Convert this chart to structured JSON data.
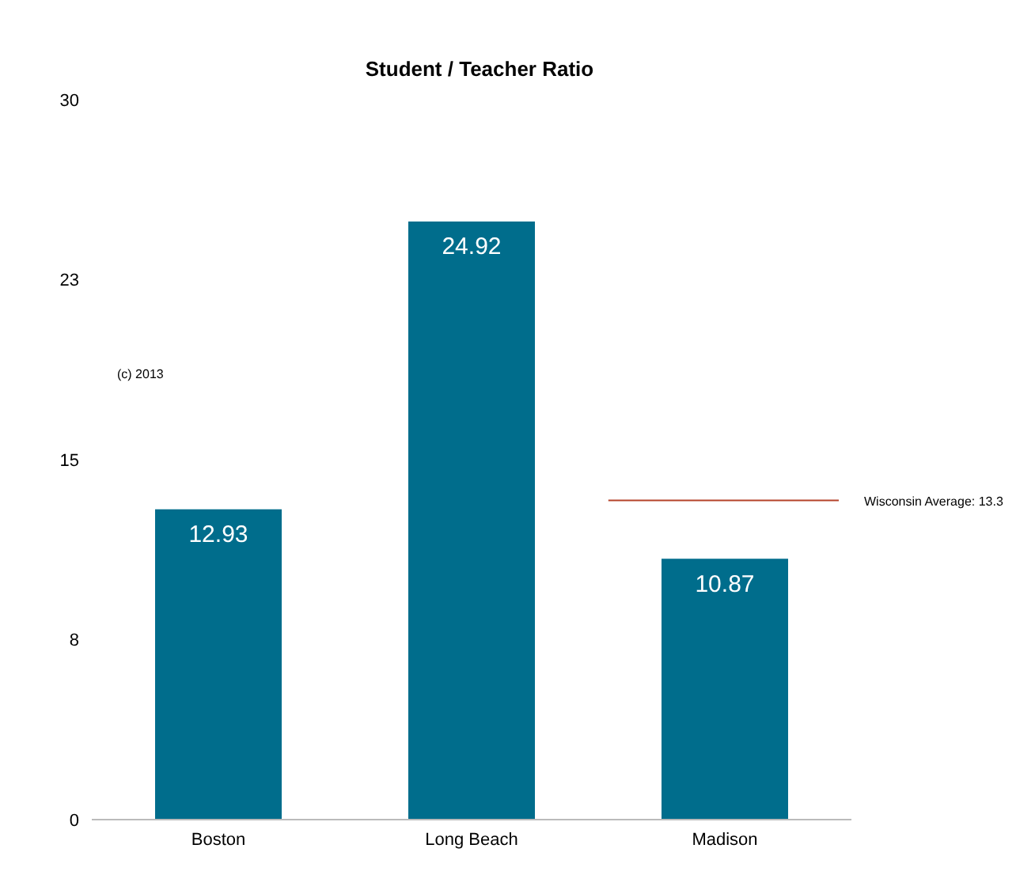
{
  "chart_data": {
    "type": "bar",
    "title": "Student / Teacher Ratio",
    "categories": [
      "Boston",
      "Long Beach",
      "Madison"
    ],
    "values": [
      12.93,
      24.92,
      10.87
    ],
    "color": "#006d8c",
    "ylim": [
      0,
      30
    ],
    "yticks": [
      0,
      {
        "value": 7.5,
        "label": "8"
      },
      15,
      {
        "value": 22.5,
        "label": "23"
      },
      30
    ],
    "data_labels": true,
    "ref_lines": [
      {
        "axis": "y",
        "value": 13.3,
        "label": "Wisconsin Average: 13.3",
        "color": "#b5432a"
      }
    ],
    "annotations": [
      "(c) 2013"
    ]
  }
}
